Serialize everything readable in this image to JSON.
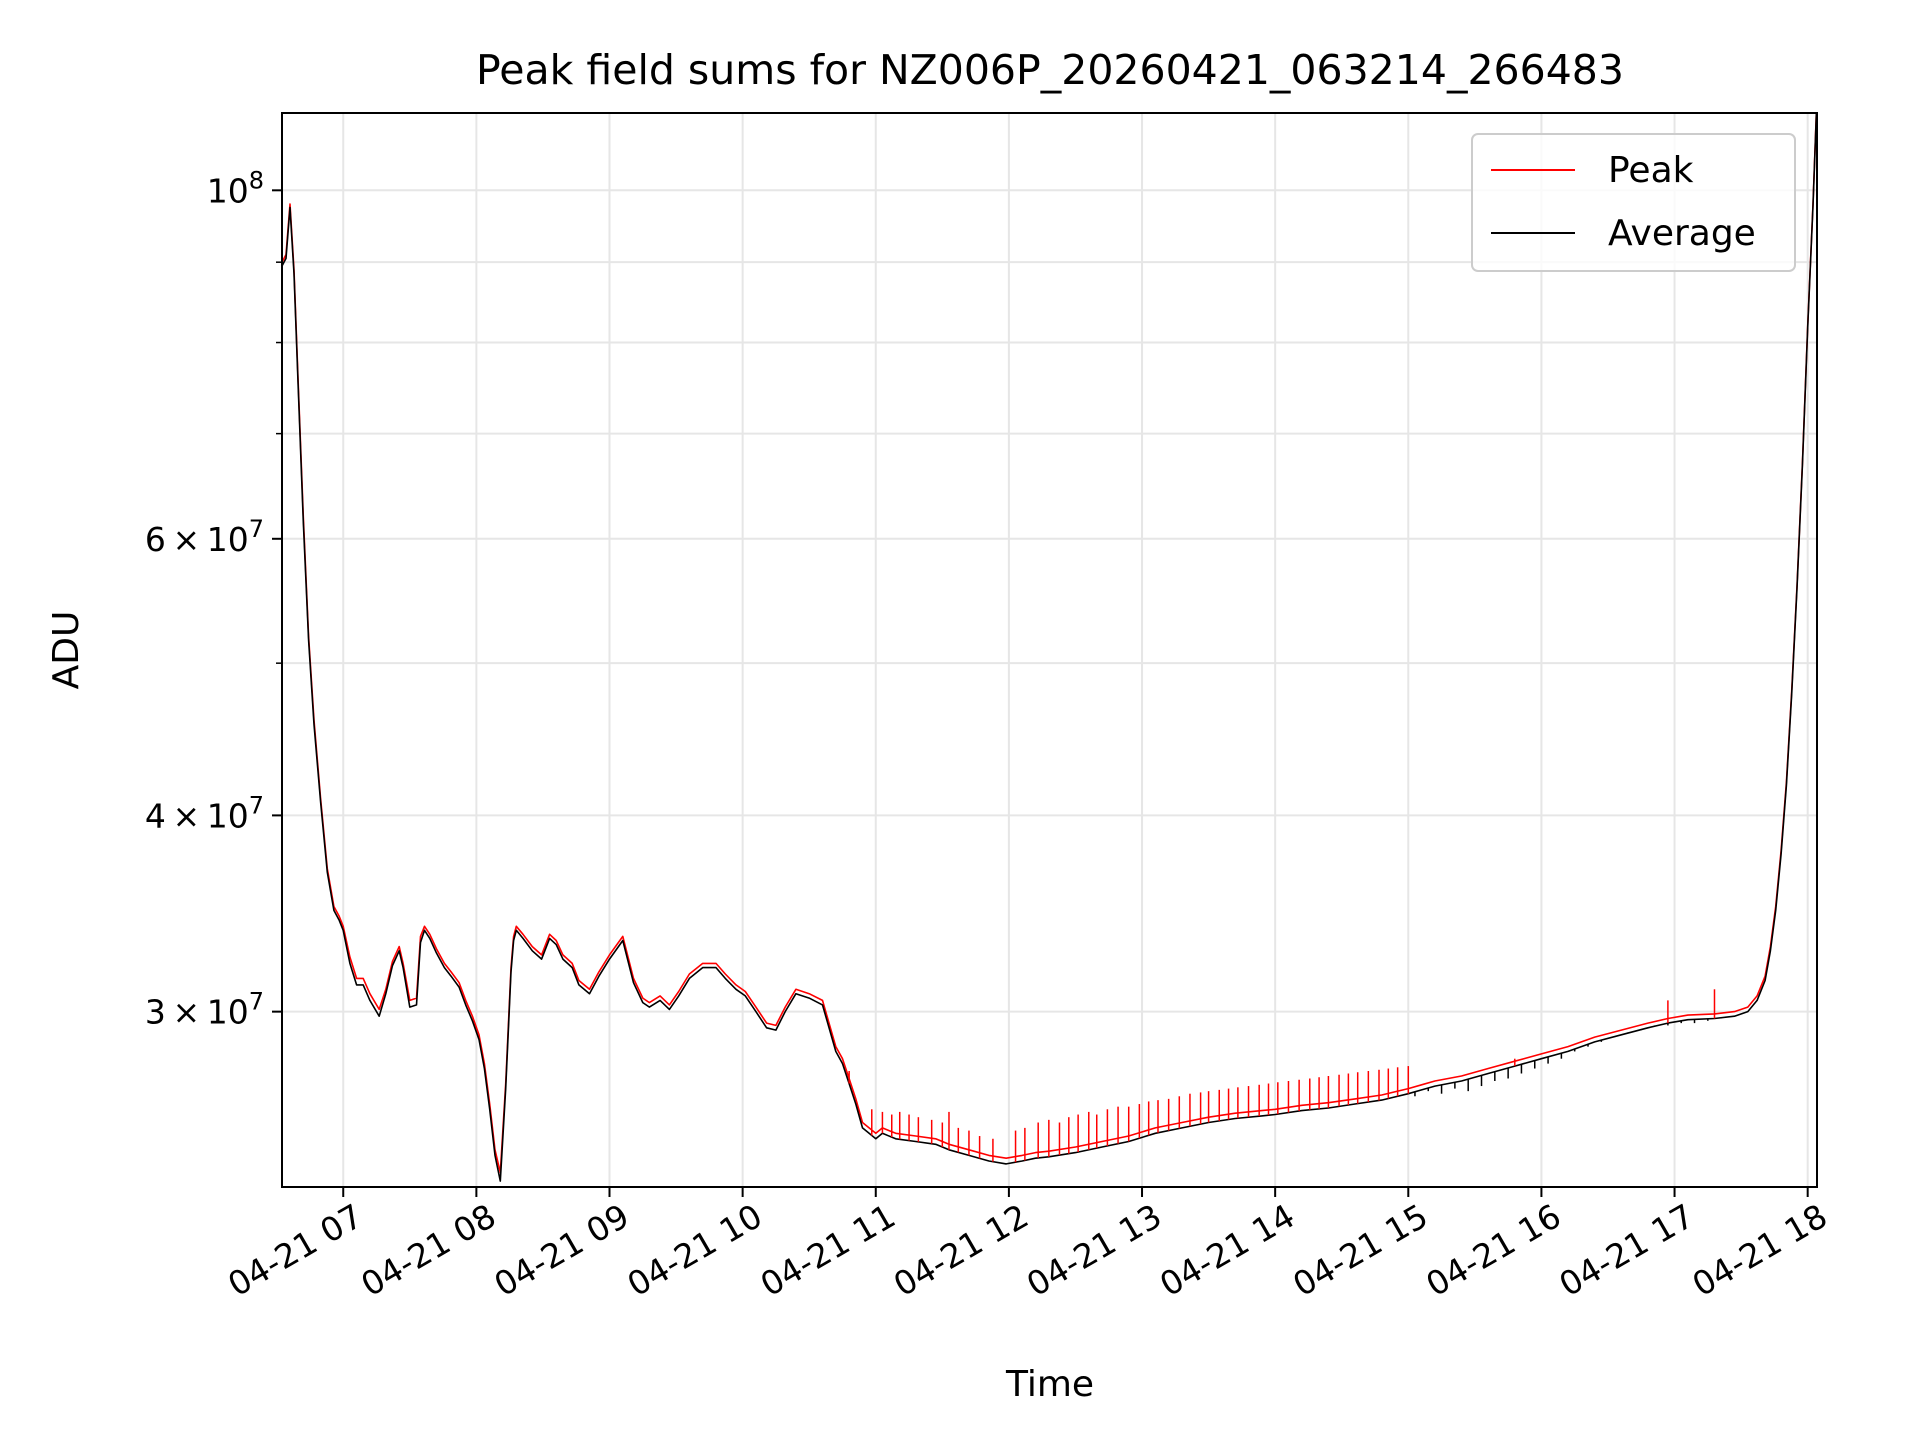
{
  "chart_data": {
    "type": "line",
    "title": "Peak field sums for NZ006P_20260421_063214_266483",
    "xlabel": "Time",
    "ylabel": "ADU",
    "yscale": "log",
    "ylim": [
      23200000,
      112000000
    ],
    "xlim": [
      6.54,
      18.07
    ],
    "grid": true,
    "legend_position": "top-right",
    "x_ticks": [
      {
        "value": 7,
        "label": "04-21 07"
      },
      {
        "value": 8,
        "label": "04-21 08"
      },
      {
        "value": 9,
        "label": "04-21 09"
      },
      {
        "value": 10,
        "label": "04-21 10"
      },
      {
        "value": 11,
        "label": "04-21 11"
      },
      {
        "value": 12,
        "label": "04-21 12"
      },
      {
        "value": 13,
        "label": "04-21 13"
      },
      {
        "value": 14,
        "label": "04-21 14"
      },
      {
        "value": 15,
        "label": "04-21 15"
      },
      {
        "value": 16,
        "label": "04-21 16"
      },
      {
        "value": 17,
        "label": "04-21 17"
      },
      {
        "value": 18,
        "label": "04-21 18"
      }
    ],
    "y_ticks": [
      {
        "value": 30000000,
        "mantissa": "3",
        "exponent": "7"
      },
      {
        "value": 40000000,
        "mantissa": "4",
        "exponent": "7"
      },
      {
        "value": 60000000,
        "mantissa": "6",
        "exponent": "7"
      },
      {
        "value": 100000000,
        "mantissa": "",
        "exponent": "8"
      }
    ],
    "y_tick_base": "10",
    "y_tick_times": "×",
    "y_minor_ticks": [
      50000000,
      70000000,
      80000000,
      90000000
    ],
    "series": [
      {
        "name": "Peak",
        "color": "#ff0000",
        "x": [
          6.54,
          6.57,
          6.6,
          6.63,
          6.66,
          6.7,
          6.74,
          6.78,
          6.83,
          6.88,
          6.93,
          6.97,
          7.0,
          7.05,
          7.1,
          7.15,
          7.2,
          7.27,
          7.32,
          7.37,
          7.42,
          7.45,
          7.5,
          7.55,
          7.58,
          7.61,
          7.65,
          7.7,
          7.76,
          7.81,
          7.87,
          7.92,
          7.97,
          8.02,
          8.06,
          8.1,
          8.14,
          8.18,
          8.22,
          8.26,
          8.28,
          8.3,
          8.35,
          8.42,
          8.49,
          8.55,
          8.6,
          8.65,
          8.72,
          8.77,
          8.85,
          8.92,
          9.0,
          9.1,
          9.18,
          9.25,
          9.3,
          9.38,
          9.45,
          9.52,
          9.6,
          9.7,
          9.8,
          9.87,
          9.95,
          10.02,
          10.1,
          10.18,
          10.25,
          10.32,
          10.4,
          10.5,
          10.6,
          10.7,
          10.75,
          10.8,
          10.85,
          10.9,
          10.95,
          11.0,
          11.05,
          11.15,
          11.3,
          11.45,
          11.55,
          11.7,
          11.85,
          11.98,
          12.1,
          12.2,
          12.3,
          12.5,
          12.7,
          12.9,
          13.1,
          13.3,
          13.5,
          13.7,
          13.9,
          14.0,
          14.2,
          14.4,
          14.6,
          14.8,
          15.0,
          15.1,
          15.2,
          15.4,
          15.6,
          15.8,
          16.0,
          16.2,
          16.4,
          16.6,
          16.8,
          16.95,
          17.1,
          17.3,
          17.45,
          17.55,
          17.62,
          17.68,
          17.72,
          17.76,
          17.8,
          17.84,
          17.88,
          17.92,
          17.96,
          18.0,
          18.04,
          18.07
        ],
        "y": [
          90000000,
          91000000,
          98000000,
          89000000,
          76000000,
          62000000,
          52000000,
          46000000,
          41000000,
          37000000,
          35000000,
          34500000,
          34000000,
          32500000,
          31500000,
          31500000,
          30800000,
          30100000,
          31000000,
          32300000,
          33000000,
          32200000,
          30500000,
          30600000,
          33500000,
          34000000,
          33600000,
          32900000,
          32200000,
          31800000,
          31300000,
          30500000,
          29800000,
          29000000,
          27800000,
          26200000,
          24500000,
          23700000,
          27000000,
          32000000,
          33500000,
          34000000,
          33600000,
          33000000,
          32600000,
          33600000,
          33300000,
          32600000,
          32200000,
          31400000,
          31000000,
          31800000,
          32600000,
          33500000,
          31500000,
          30600000,
          30400000,
          30700000,
          30300000,
          30900000,
          31700000,
          32200000,
          32200000,
          31700000,
          31200000,
          30900000,
          30200000,
          29500000,
          29400000,
          30200000,
          31000000,
          30800000,
          30500000,
          28500000,
          28000000,
          27200000,
          26400000,
          25500000,
          25300000,
          25100000,
          25300000,
          25100000,
          25000000,
          24900000,
          24700000,
          24500000,
          24300000,
          24200000,
          24300000,
          24400000,
          24450000,
          24600000,
          24800000,
          25000000,
          25300000,
          25500000,
          25700000,
          25850000,
          25950000,
          26000000,
          26150000,
          26250000,
          26400000,
          26550000,
          26800000,
          26950000,
          27100000,
          27300000,
          27600000,
          27900000,
          28200000,
          28500000,
          28900000,
          29200000,
          29500000,
          29700000,
          29850000,
          29900000,
          30000000,
          30200000,
          30700000,
          31600000,
          33000000,
          35000000,
          38000000,
          42000000,
          48000000,
          56000000,
          67000000,
          82000000,
          98000000,
          115000000
        ]
      },
      {
        "name": "Average",
        "color": "#000000",
        "x": [
          6.54,
          6.57,
          6.6,
          6.63,
          6.66,
          6.7,
          6.74,
          6.78,
          6.83,
          6.88,
          6.93,
          6.97,
          7.0,
          7.05,
          7.1,
          7.15,
          7.2,
          7.27,
          7.32,
          7.37,
          7.42,
          7.45,
          7.5,
          7.55,
          7.58,
          7.61,
          7.65,
          7.7,
          7.76,
          7.81,
          7.87,
          7.92,
          7.97,
          8.02,
          8.06,
          8.1,
          8.14,
          8.18,
          8.22,
          8.26,
          8.28,
          8.3,
          8.35,
          8.42,
          8.49,
          8.55,
          8.6,
          8.65,
          8.72,
          8.77,
          8.85,
          8.92,
          9.0,
          9.1,
          9.18,
          9.25,
          9.3,
          9.38,
          9.45,
          9.52,
          9.6,
          9.7,
          9.8,
          9.87,
          9.95,
          10.02,
          10.1,
          10.18,
          10.25,
          10.32,
          10.4,
          10.5,
          10.6,
          10.7,
          10.75,
          10.8,
          10.85,
          10.9,
          10.95,
          11.0,
          11.05,
          11.15,
          11.3,
          11.45,
          11.55,
          11.7,
          11.85,
          11.98,
          12.1,
          12.2,
          12.3,
          12.5,
          12.7,
          12.9,
          13.1,
          13.3,
          13.5,
          13.7,
          13.9,
          14.0,
          14.2,
          14.4,
          14.6,
          14.8,
          15.0,
          15.1,
          15.2,
          15.4,
          15.6,
          15.8,
          16.0,
          16.2,
          16.4,
          16.6,
          16.8,
          16.95,
          17.1,
          17.3,
          17.45,
          17.55,
          17.62,
          17.68,
          17.72,
          17.76,
          17.8,
          17.84,
          17.88,
          17.92,
          17.96,
          18.0,
          18.04,
          18.07
        ],
        "y": [
          89500000,
          90500000,
          97500000,
          88500000,
          75500000,
          61500000,
          51700000,
          45700000,
          40800000,
          36800000,
          34800000,
          34300000,
          33800000,
          32200000,
          31200000,
          31200000,
          30500000,
          29800000,
          30800000,
          32100000,
          32800000,
          32000000,
          30200000,
          30300000,
          33200000,
          33800000,
          33400000,
          32700000,
          32000000,
          31600000,
          31100000,
          30300000,
          29600000,
          28800000,
          27600000,
          26000000,
          24300000,
          23400000,
          26800000,
          31800000,
          33300000,
          33800000,
          33400000,
          32800000,
          32400000,
          33400000,
          33100000,
          32400000,
          32000000,
          31200000,
          30800000,
          31600000,
          32400000,
          33300000,
          31300000,
          30400000,
          30200000,
          30500000,
          30100000,
          30700000,
          31500000,
          32000000,
          32000000,
          31500000,
          31000000,
          30700000,
          30000000,
          29300000,
          29200000,
          30000000,
          30800000,
          30600000,
          30300000,
          28300000,
          27800000,
          27000000,
          26200000,
          25300000,
          25100000,
          24900000,
          25100000,
          24900000,
          24800000,
          24700000,
          24500000,
          24300000,
          24100000,
          24000000,
          24100000,
          24200000,
          24250000,
          24400000,
          24600000,
          24800000,
          25100000,
          25300000,
          25500000,
          25650000,
          25750000,
          25800000,
          25950000,
          26050000,
          26200000,
          26350000,
          26600000,
          26750000,
          26900000,
          27100000,
          27400000,
          27700000,
          28000000,
          28300000,
          28700000,
          29000000,
          29300000,
          29500000,
          29650000,
          29700000,
          29800000,
          30000000,
          30500000,
          31400000,
          32800000,
          34800000,
          37800000,
          41800000,
          47800000,
          55800000,
          66800000,
          81800000,
          97800000,
          114800000
        ]
      }
    ],
    "peak_spikes": {
      "x": [
        10.8,
        10.97,
        11.05,
        11.12,
        11.18,
        11.25,
        11.32,
        11.42,
        11.5,
        11.55,
        11.62,
        11.7,
        11.78,
        11.88,
        12.05,
        12.12,
        12.22,
        12.3,
        12.38,
        12.45,
        12.52,
        12.6,
        12.66,
        12.74,
        12.82,
        12.9,
        12.98,
        13.05,
        13.12,
        13.2,
        13.28,
        13.36,
        13.44,
        13.5,
        13.58,
        13.65,
        13.72,
        13.8,
        13.88,
        13.95,
        14.02,
        14.1,
        14.18,
        14.26,
        14.33,
        14.4,
        14.48,
        14.55,
        14.62,
        14.7,
        14.78,
        14.85,
        14.92,
        15.0,
        15.8,
        16.95,
        17.3
      ],
      "y": [
        27500000,
        26000000,
        25900000,
        25800000,
        25900000,
        25800000,
        25700000,
        25600000,
        25500000,
        25900000,
        25300000,
        25200000,
        25000000,
        24900000,
        25200000,
        25300000,
        25500000,
        25600000,
        25500000,
        25700000,
        25800000,
        25900000,
        25800000,
        26000000,
        26100000,
        26100000,
        26200000,
        26300000,
        26350000,
        26400000,
        26500000,
        26600000,
        26650000,
        26700000,
        26750000,
        26800000,
        26850000,
        26900000,
        26950000,
        27000000,
        27050000,
        27100000,
        27150000,
        27200000,
        27250000,
        27300000,
        27350000,
        27400000,
        27450000,
        27500000,
        27550000,
        27600000,
        27650000,
        27700000,
        28000000,
        30500000,
        31000000
      ]
    },
    "average_dips": {
      "x": [
        15.05,
        15.15,
        15.25,
        15.35,
        15.45,
        15.55,
        15.65,
        15.75,
        15.85,
        15.95,
        16.05,
        16.15,
        16.25,
        16.35,
        16.45,
        16.55,
        16.65,
        16.75,
        16.85,
        16.95,
        17.05,
        17.15,
        17.25,
        17.35,
        17.45,
        17.55
      ],
      "y": [
        26500000,
        26700000,
        26600000,
        26800000,
        26700000,
        26900000,
        27100000,
        27200000,
        27400000,
        27600000,
        27800000,
        28000000,
        28300000,
        28500000,
        28700000,
        28900000,
        29100000,
        29200000,
        29400000,
        29400000,
        29500000,
        29500000,
        29600000,
        29700000,
        29800000,
        30000000
      ]
    }
  }
}
